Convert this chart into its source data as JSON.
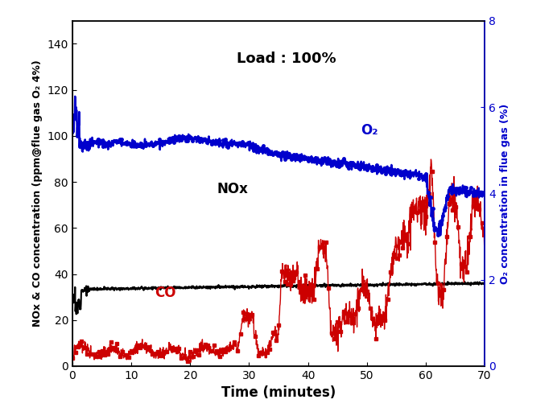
{
  "xlabel": "Time (minutes)",
  "ylabel_left": "NOx & CO concentration (ppm@flue gas O₂ 4%)",
  "ylabel_right": "O₂ concentration in flue gas (%)",
  "xlim": [
    0,
    70
  ],
  "ylim_left": [
    0,
    150
  ],
  "ylim_right": [
    0,
    8
  ],
  "yticks_left": [
    0,
    20,
    40,
    60,
    80,
    100,
    120,
    140
  ],
  "yticks_right": [
    0,
    2,
    4,
    6,
    8
  ],
  "xticks": [
    0,
    10,
    20,
    30,
    40,
    50,
    60,
    70
  ],
  "nox_color": "#000000",
  "co_color": "#cc0000",
  "o2_color": "#0000cc",
  "annotation_load": "Load : 100%",
  "label_NOx": "NOx",
  "label_CO": "CO",
  "label_O2": "O₂"
}
